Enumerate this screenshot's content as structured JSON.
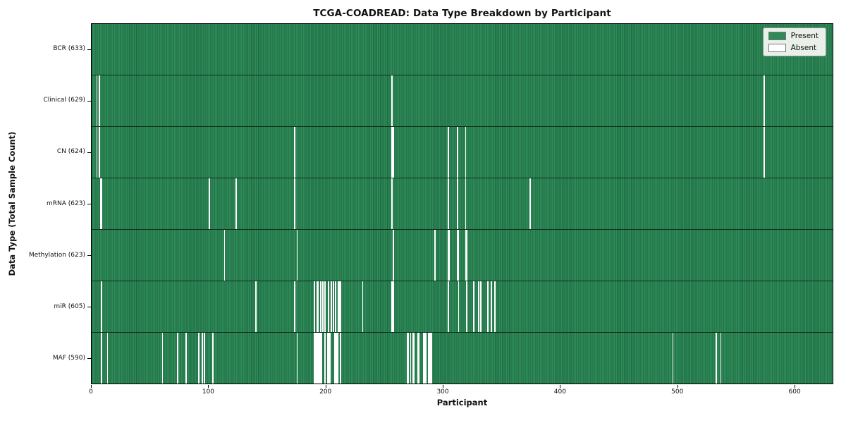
{
  "chart_data": {
    "type": "heatmap",
    "title": "TCGA-COADREAD: Data Type Breakdown by Participant",
    "xlabel": "Participant",
    "ylabel": "Data Type (Total Sample Count)",
    "xlim": [
      0,
      633
    ],
    "n_participants": 633,
    "x_ticks": [
      0,
      100,
      200,
      300,
      400,
      500,
      600
    ],
    "grid": false,
    "legend_position": "upper right",
    "legend": [
      {
        "label": "Present",
        "color": "#2e8b57"
      },
      {
        "label": "Absent",
        "color": "#ffffff"
      }
    ],
    "colors": {
      "present": "#2e8b57",
      "present_edge": "#1e6743",
      "absent": "#ffffff",
      "row_separator": "#141414",
      "plot_border": "#000000"
    },
    "rows": [
      {
        "name": "BCR",
        "label": "BCR (633)",
        "present_count": 633,
        "absent_count": 0,
        "absent_participants": []
      },
      {
        "name": "Clinical",
        "label": "Clinical (629)",
        "present_count": 629,
        "absent_count": 4,
        "absent_participants": [
          4,
          6,
          256,
          574
        ]
      },
      {
        "name": "CN",
        "label": "CN (624)",
        "present_count": 624,
        "absent_count": 9,
        "absent_participants": [
          4,
          6,
          173,
          256,
          257,
          304,
          312,
          319,
          574
        ]
      },
      {
        "name": "mRNA",
        "label": "mRNA (623)",
        "present_count": 623,
        "absent_count": 10,
        "absent_participants": [
          7,
          8,
          100,
          123,
          173,
          256,
          304,
          312,
          319,
          374
        ]
      },
      {
        "name": "Methylation",
        "label": "Methylation (623)",
        "present_count": 623,
        "absent_count": 10,
        "absent_participants": [
          113,
          175,
          257,
          293,
          304,
          305,
          312,
          313,
          319,
          320
        ]
      },
      {
        "name": "miR",
        "label": "miR (605)",
        "present_count": 605,
        "absent_count": 28,
        "absent_participants": [
          8,
          140,
          173,
          190,
          192,
          193,
          195,
          197,
          199,
          202,
          204,
          206,
          208,
          210,
          211,
          212,
          231,
          256,
          257,
          304,
          313,
          320,
          326,
          330,
          332,
          338,
          341,
          344
        ]
      },
      {
        "name": "MAF",
        "label": "MAF (590)",
        "present_count": 590,
        "absent_count": 43,
        "absent_participants": [
          8,
          13,
          60,
          73,
          80,
          91,
          94,
          96,
          103,
          175,
          190,
          191,
          192,
          193,
          194,
          195,
          196,
          199,
          201,
          202,
          203,
          207,
          208,
          209,
          210,
          212,
          269,
          270,
          272,
          274,
          275,
          278,
          279,
          283,
          284,
          285,
          287,
          288,
          289,
          290,
          496,
          533,
          537
        ]
      }
    ]
  }
}
